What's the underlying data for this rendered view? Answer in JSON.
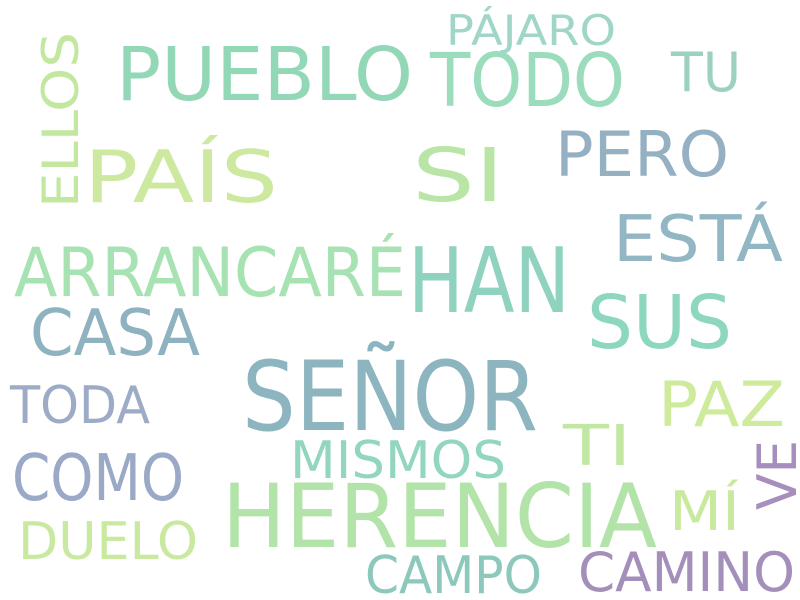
{
  "words": [
    {
      "text": "SEÑOR",
      "color": "#8db5bf"
    },
    {
      "text": "HERENCIA",
      "color": "#b2e3a9"
    },
    {
      "text": "PUEBLO",
      "color": "#93d8b6"
    },
    {
      "text": "TODO",
      "color": "#9bdcbc"
    },
    {
      "text": "HAN",
      "color": "#8fd2c0"
    },
    {
      "text": "PAÍS",
      "color": "#cde9a0"
    },
    {
      "text": "ARRANCARÉ",
      "color": "#a7e2b2"
    },
    {
      "text": "SUS",
      "color": "#8dd7c0"
    },
    {
      "text": "SI",
      "color": "#b9e6a6"
    },
    {
      "text": "PERO",
      "color": "#95b0c2"
    },
    {
      "text": "ESTÁ",
      "color": "#93b6c4"
    },
    {
      "text": "CASA",
      "color": "#8fb2c0"
    },
    {
      "text": "COMO",
      "color": "#9aa9c6"
    },
    {
      "text": "PAZ",
      "color": "#cdeb9b"
    },
    {
      "text": "MISMOS",
      "color": "#92d6bd"
    },
    {
      "text": "CAMINO",
      "color": "#a48fbb"
    },
    {
      "text": "CAMPO",
      "color": "#8cc8bc"
    },
    {
      "text": "DUELO",
      "color": "#c8e99f"
    },
    {
      "text": "TODA",
      "color": "#9dabc6"
    },
    {
      "text": "ELLOS",
      "color": "#c2e8a0"
    },
    {
      "text": "TU",
      "color": "#9cd1c2"
    },
    {
      "text": "PÁJARO",
      "color": "#a0d6c8"
    },
    {
      "text": "TI",
      "color": "#c2e7a2"
    },
    {
      "text": "MÍ",
      "color": "#c9e99e"
    },
    {
      "text": "VE",
      "color": "#a68fbc"
    }
  ]
}
